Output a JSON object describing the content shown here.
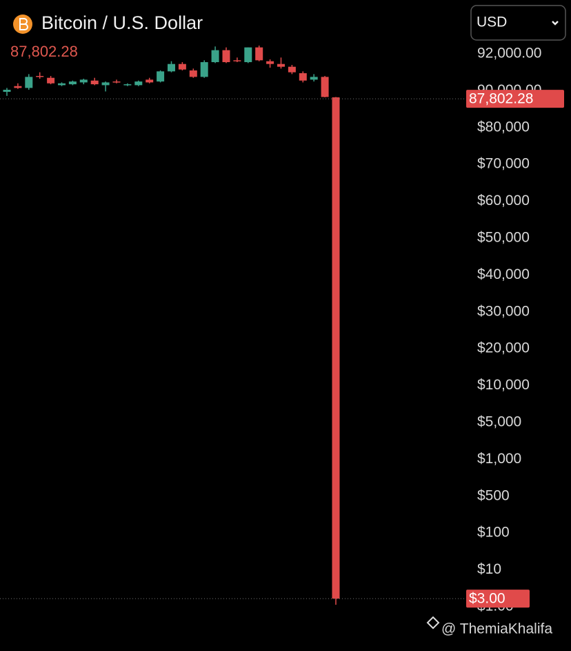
{
  "chart_data": {
    "type": "candlestick",
    "title": "Bitcoin / U.S. Dollar",
    "currency": "USD",
    "price_line": {
      "value": 87802.28,
      "label": "87,802.28"
    },
    "low_line": {
      "value": 3,
      "label": "$3.00"
    },
    "watermark": "@ ThemiaKhalifa",
    "up_color": "#3aa38a",
    "down_color": "#e04a4a",
    "ylim": [
      1,
      93000
    ],
    "yticks": [
      {
        "value": 92000,
        "label": "92,000.00"
      },
      {
        "value": 90000,
        "label": "90,000.00"
      },
      {
        "value": 80000,
        "label": "$80,000"
      },
      {
        "value": 70000,
        "label": "$70,000"
      },
      {
        "value": 60000,
        "label": "$60,000"
      },
      {
        "value": 50000,
        "label": "$50,000"
      },
      {
        "value": 40000,
        "label": "$40,000"
      },
      {
        "value": 30000,
        "label": "$30,000"
      },
      {
        "value": 20000,
        "label": "$20,000"
      },
      {
        "value": 10000,
        "label": "$10,000"
      },
      {
        "value": 5000,
        "label": "$5,000"
      },
      {
        "value": 1000,
        "label": "$1,000"
      },
      {
        "value": 500,
        "label": "$500"
      },
      {
        "value": 100,
        "label": "$100"
      },
      {
        "value": 10,
        "label": "$10"
      },
      {
        "value": 1,
        "label": "$1.00"
      }
    ],
    "open": [
      89700,
      90250,
      90150,
      90800,
      90700,
      90300,
      90350,
      90450,
      90550,
      90300,
      90500,
      90300,
      90300,
      90600,
      90500,
      91050,
      91450,
      91100,
      90750,
      91550,
      92200,
      91650,
      91550,
      92350,
      91600,
      91450,
      91300,
      90950,
      90600,
      90750,
      88200
    ],
    "high": [
      90150,
      90400,
      90900,
      91000,
      90800,
      90450,
      90550,
      90650,
      90700,
      90500,
      90600,
      90400,
      90550,
      90700,
      91100,
      91600,
      91550,
      91200,
      91650,
      92400,
      92350,
      91800,
      92350,
      92450,
      91700,
      91800,
      91400,
      91050,
      90900,
      90800,
      88300
    ],
    "low": [
      88600,
      90100,
      90050,
      90650,
      90350,
      90250,
      90300,
      90350,
      90300,
      89800,
      90400,
      90250,
      90250,
      90400,
      90450,
      91000,
      91100,
      90700,
      90700,
      91500,
      91500,
      91550,
      91500,
      91600,
      91250,
      91200,
      90900,
      90450,
      90500,
      88200,
      1.5
    ],
    "close": [
      90050,
      90150,
      90750,
      90750,
      90400,
      90400,
      90500,
      90600,
      90350,
      90450,
      90450,
      90350,
      90500,
      90450,
      91050,
      91450,
      91150,
      90750,
      91550,
      92200,
      91550,
      91600,
      92350,
      91650,
      91450,
      91300,
      91000,
      90550,
      90750,
      88300,
      3
    ]
  }
}
